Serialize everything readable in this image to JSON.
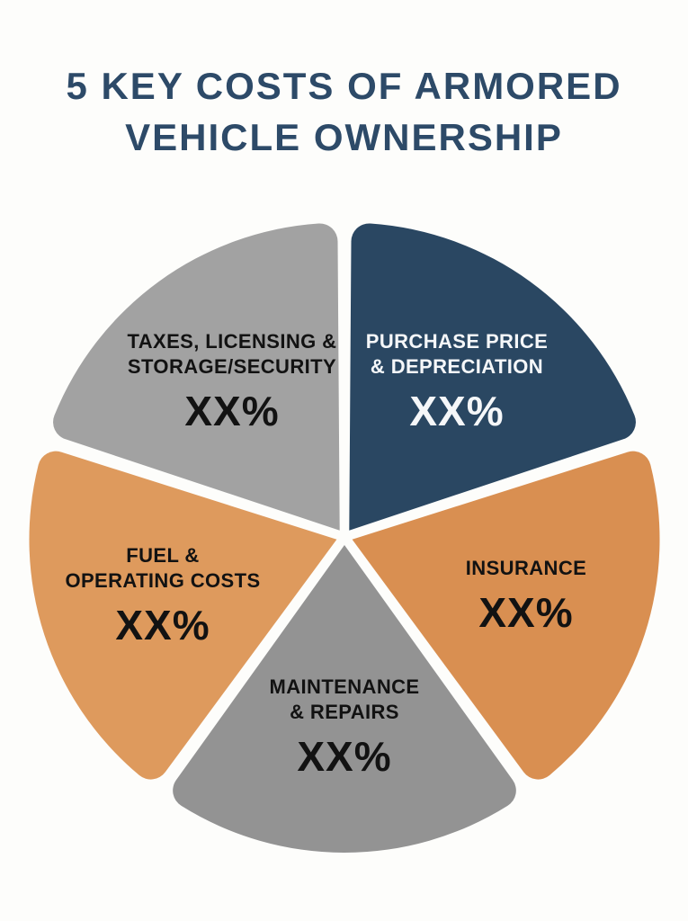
{
  "title": {
    "line1": "5 KEY COSTS OF ARMORED",
    "line2": "VEHICLE OWNERSHIP",
    "color": "#2d4a68"
  },
  "background_color": "#fdfdfb",
  "chart_data": {
    "type": "pie",
    "title": "5 KEY COSTS OF ARMORED VEHICLE OWNERSHIP",
    "legend": "none",
    "start_angle_deg": -90,
    "direction": "clockwise",
    "equal_slice_angle_deg": 72,
    "categories": [
      "PURCHASE PRICE & DEPRECIATION",
      "INSURANCE",
      "MAINTENANCE & REPAIRS",
      "FUEL & OPERATING COSTS",
      "TAXES, LICENSING & STORAGE/SECURITY"
    ],
    "values": [
      "XX%",
      "XX%",
      "XX%",
      "XX%",
      "XX%"
    ],
    "slices": [
      {
        "key": "purchase-price-depreciation",
        "label_lines": [
          "PURCHASE PRICE",
          "& DEPRECIATION"
        ],
        "value": "XX%",
        "color": "#2a4762",
        "text_color": "#f5f7f9"
      },
      {
        "key": "insurance",
        "label_lines": [
          "INSURANCE"
        ],
        "value": "XX%",
        "color": "#d98f51",
        "text_color": "#121212"
      },
      {
        "key": "maintenance-repairs",
        "label_lines": [
          "MAINTENANCE",
          "& REPAIRS"
        ],
        "value": "XX%",
        "color": "#939393",
        "text_color": "#121212"
      },
      {
        "key": "fuel-operating-costs",
        "label_lines": [
          "FUEL &",
          "OPERATING COSTS"
        ],
        "value": "XX%",
        "color": "#de9a5d",
        "text_color": "#121212"
      },
      {
        "key": "taxes-licensing-storage-security",
        "label_lines": [
          "TAXES, LICENSING &",
          "STORAGE/SECURITY"
        ],
        "value": "XX%",
        "color": "#a2a2a2",
        "text_color": "#121212"
      }
    ]
  }
}
